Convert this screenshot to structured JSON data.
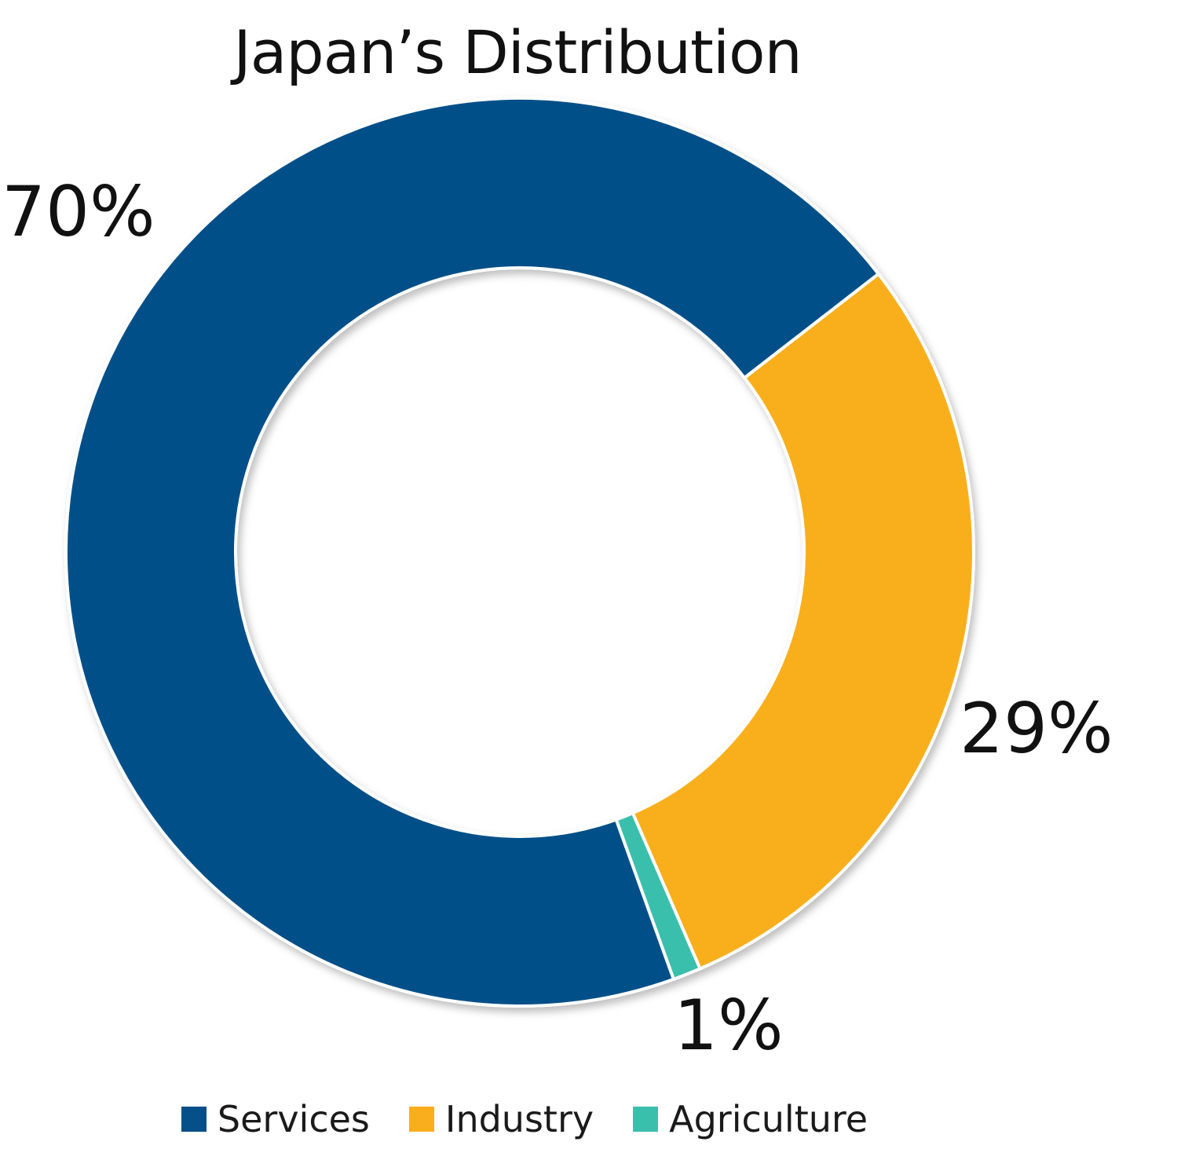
{
  "chart_data": {
    "type": "pie",
    "title": "Japan’s Distribution",
    "categories": [
      "Services",
      "Industry",
      "Agriculture"
    ],
    "values": [
      70,
      29,
      1
    ],
    "labels": [
      "70%",
      "29%",
      "1%"
    ],
    "colors": [
      "#055088",
      "#f9af1d",
      "#3bbfad"
    ],
    "legend_position": "bottom",
    "style": "donut"
  },
  "legend": {
    "items": [
      {
        "label": "Services",
        "color": "#055088"
      },
      {
        "label": "Industry",
        "color": "#f9af1d"
      },
      {
        "label": "Agriculture",
        "color": "#3bbfad"
      }
    ]
  }
}
